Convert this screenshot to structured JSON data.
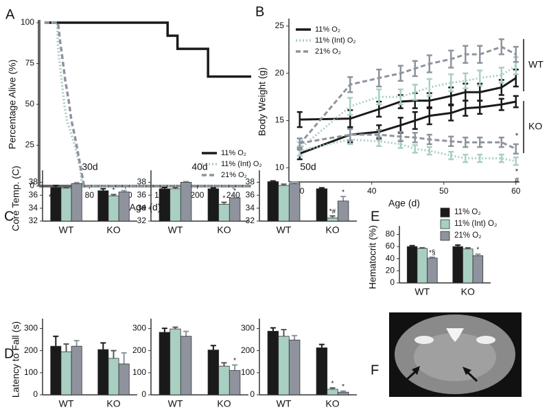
{
  "panel_labels": [
    "A",
    "B",
    "C",
    "D",
    "E",
    "F"
  ],
  "chart_data": [
    {
      "type": "line",
      "ylabel": "Percentage Alive (%)",
      "xlabel": "Age (d)",
      "xlim": [
        24,
        260
      ],
      "ylim": [
        0,
        100
      ],
      "xticks": [
        40,
        80,
        120,
        160,
        200,
        240
      ],
      "yticks": [
        0,
        25,
        50,
        75,
        100
      ],
      "legend": "lower right",
      "series": [
        {
          "name": "11% O₂",
          "color": "#1a1a1a",
          "dash": "solid",
          "x": [
            30,
            167,
            167,
            178,
            178,
            212,
            212,
            260
          ],
          "values": [
            100,
            100,
            92,
            92,
            84,
            84,
            67,
            67
          ]
        },
        {
          "name": "11% (Int) O₂",
          "color": "#a9cfc3",
          "dash": "dotted",
          "x": [
            30,
            44,
            45,
            48,
            50,
            52,
            55,
            58,
            62,
            65,
            70,
            72,
            260
          ],
          "values": [
            100,
            100,
            85,
            70,
            60,
            50,
            40,
            35,
            28,
            22,
            10,
            0,
            0
          ]
        },
        {
          "name": "21% O₂",
          "color": "#8e939e",
          "dash": "dashed",
          "x": [
            30,
            45,
            47,
            50,
            53,
            57,
            60,
            64,
            68,
            72,
            74,
            260
          ],
          "values": [
            100,
            100,
            90,
            78,
            65,
            52,
            40,
            30,
            18,
            6,
            0,
            0
          ]
        }
      ]
    },
    {
      "type": "errorline",
      "ylabel": "Body Weight (g)",
      "xlabel": "Age (d)",
      "xlim": [
        28.5,
        60.5
      ],
      "ylim": [
        8.5,
        25.5
      ],
      "xticks": [
        30,
        40,
        50,
        60
      ],
      "yticks": [
        10,
        15,
        20,
        25
      ],
      "legend": "upper left",
      "x": [
        30,
        37,
        41,
        44,
        46,
        48,
        51,
        53,
        55,
        58,
        60
      ],
      "groups": [
        "WT",
        "KO"
      ],
      "annotations": [
        "*",
        "*",
        "#"
      ],
      "series": [
        {
          "name": "11% O₂",
          "color": "#1a1a1a",
          "dash": "solid",
          "wt": {
            "values": [
              15.1,
              15.2,
              16.2,
              17,
              17.1,
              17.1,
              17.6,
              18,
              18,
              18.5,
              19.5
            ],
            "errors": [
              0.8,
              0.9,
              0.8,
              0.7,
              0.8,
              0.8,
              0.9,
              0.9,
              0.9,
              0.8,
              0.9
            ]
          },
          "ko": {
            "values": [
              11.5,
              13.5,
              13.8,
              14.5,
              15,
              15.5,
              15.8,
              16.3,
              16.4,
              16.7,
              17
            ],
            "errors": [
              0.6,
              0.8,
              0.7,
              0.8,
              0.9,
              0.9,
              0.8,
              0.8,
              0.7,
              0.6,
              0.6
            ]
          }
        },
        {
          "name": "11% (Int) O₂",
          "color": "#a9cfc3",
          "dash": "dotted",
          "wt": {
            "values": [
              12,
              16.5,
              17.5,
              17.5,
              18,
              18.5,
              19,
              19.2,
              19.5,
              19.8,
              20.8
            ],
            "errors": [
              0.7,
              0.9,
              0.8,
              0.8,
              0.8,
              0.9,
              0.9,
              0.8,
              0.8,
              0.8,
              0.9
            ]
          },
          "ko": {
            "values": [
              11.8,
              13,
              12.8,
              12.5,
              12,
              11.8,
              11.3,
              11,
              11,
              11,
              10.7
            ],
            "errors": [
              0.5,
              0.5,
              0.5,
              0.4,
              0.4,
              0.4,
              0.4,
              0.4,
              0.4,
              0.4,
              0.4
            ]
          }
        },
        {
          "name": "21% O₂",
          "color": "#8e939e",
          "dash": "dashed",
          "wt": {
            "values": [
              12.5,
              18.8,
              19.5,
              20,
              20.5,
              21,
              21.5,
              22,
              22,
              22.8,
              22
            ],
            "errors": [
              0.6,
              0.8,
              0.9,
              0.8,
              0.8,
              0.9,
              0.9,
              0.9,
              0.9,
              0.8,
              0.8
            ]
          },
          "ko": {
            "values": [
              12.6,
              13.5,
              13.5,
              13.3,
              13.2,
              13,
              12.8,
              12.7,
              12.7,
              12.7,
              12
            ],
            "errors": [
              0.5,
              0.6,
              0.5,
              0.5,
              0.5,
              0.5,
              0.5,
              0.5,
              0.5,
              0.5,
              0.5
            ]
          }
        }
      ]
    },
    {
      "type": "bar",
      "title": "30d",
      "ylabel": "Core Temp. (C)",
      "categories": [
        "WT",
        "KO"
      ],
      "ylim": [
        32,
        39
      ],
      "yticks": [
        32,
        34,
        36,
        38
      ],
      "series": [
        {
          "color": "#1a1a1a",
          "values": [
            37.2,
            36.7
          ],
          "errors": [
            0.3,
            0.3
          ]
        },
        {
          "color": "#a9cfc3",
          "values": [
            37.1,
            35.9
          ],
          "errors": [
            0.1,
            0.2
          ]
        },
        {
          "color": "#8e939e",
          "values": [
            37.8,
            36.5
          ],
          "errors": [
            0.15,
            0.2
          ]
        }
      ],
      "annotations": [
        {
          "text": "*",
          "series": 1,
          "index": 1
        }
      ]
    },
    {
      "type": "bar",
      "title": "40d",
      "categories": [
        "WT",
        "KO"
      ],
      "ylim": [
        32,
        39
      ],
      "yticks": [
        32,
        34,
        36,
        38
      ],
      "series": [
        {
          "color": "#1a1a1a",
          "values": [
            37.0,
            37.0
          ],
          "errors": [
            0.2,
            0.15
          ]
        },
        {
          "color": "#a9cfc3",
          "values": [
            37.0,
            34.6
          ],
          "errors": [
            0.2,
            0.3
          ]
        },
        {
          "color": "#8e939e",
          "values": [
            38.0,
            35.6
          ],
          "errors": [
            0.1,
            0.4
          ]
        }
      ],
      "annotations": [
        {
          "text": "*",
          "series": 1,
          "index": 1
        },
        {
          "text": "*",
          "series": 2,
          "index": 1
        }
      ]
    },
    {
      "type": "bar",
      "title": "50d",
      "categories": [
        "WT",
        "KO"
      ],
      "ylim": [
        32,
        39
      ],
      "yticks": [
        32,
        34,
        36,
        38
      ],
      "series": [
        {
          "color": "#1a1a1a",
          "values": [
            38.1,
            37.0
          ],
          "errors": [
            0.1,
            0.15
          ]
        },
        {
          "color": "#a9cfc3",
          "values": [
            37.5,
            32.5
          ],
          "errors": [
            0.2,
            0.3
          ]
        },
        {
          "color": "#8e939e",
          "values": [
            37.8,
            35.1
          ],
          "errors": [
            0.2,
            0.7
          ]
        }
      ],
      "annotations": [
        {
          "text": "*#",
          "series": 1,
          "index": 1
        },
        {
          "text": "*",
          "series": 2,
          "index": 1
        }
      ]
    },
    {
      "type": "bar",
      "ylabel": "Latency to Fall (s)",
      "categories": [
        "WT",
        "KO"
      ],
      "ylim": [
        0,
        320
      ],
      "yticks": [
        0,
        100,
        200,
        300
      ],
      "series": [
        {
          "color": "#1a1a1a",
          "values": [
            220,
            205
          ],
          "errors": [
            45,
            30
          ]
        },
        {
          "color": "#a9cfc3",
          "values": [
            195,
            165
          ],
          "errors": [
            35,
            35
          ]
        },
        {
          "color": "#8e939e",
          "values": [
            220,
            140
          ],
          "errors": [
            25,
            50
          ]
        }
      ],
      "annotations": []
    },
    {
      "type": "bar",
      "categories": [
        "WT",
        "KO"
      ],
      "ylim": [
        0,
        320
      ],
      "yticks": [
        0,
        100,
        200,
        300
      ],
      "series": [
        {
          "color": "#1a1a1a",
          "values": [
            283,
            203
          ],
          "errors": [
            18,
            20
          ]
        },
        {
          "color": "#a9cfc3",
          "values": [
            298,
            130
          ],
          "errors": [
            8,
            15
          ]
        },
        {
          "color": "#8e939e",
          "values": [
            265,
            110
          ],
          "errors": [
            22,
            25
          ]
        }
      ],
      "annotations": [
        {
          "text": "*",
          "series": 2,
          "index": 1
        }
      ]
    },
    {
      "type": "bar",
      "categories": [
        "WT",
        "KO"
      ],
      "ylim": [
        0,
        320
      ],
      "yticks": [
        0,
        100,
        200,
        300
      ],
      "series": [
        {
          "color": "#1a1a1a",
          "values": [
            288,
            213
          ],
          "errors": [
            15,
            15
          ]
        },
        {
          "color": "#a9cfc3",
          "values": [
            265,
            25
          ],
          "errors": [
            30,
            6
          ]
        },
        {
          "color": "#8e939e",
          "values": [
            248,
            12
          ],
          "errors": [
            20,
            5
          ]
        }
      ],
      "annotations": [
        {
          "text": "*",
          "series": 1,
          "index": 1
        },
        {
          "text": "*",
          "series": 2,
          "index": 1
        }
      ]
    },
    {
      "type": "bar",
      "ylabel": "Hematocrit (%)",
      "categories": [
        "WT",
        "KO"
      ],
      "ylim": [
        0,
        85
      ],
      "yticks": [
        0,
        20,
        40,
        60,
        80
      ],
      "legend": "upper right",
      "series": [
        {
          "name": "11% O₂",
          "color": "#1a1a1a",
          "values": [
            60,
            60
          ],
          "errors": [
            1.5,
            2.5
          ]
        },
        {
          "name": "11% (Int) O₂",
          "color": "#a9cfc3",
          "values": [
            57,
            56
          ],
          "errors": [
            1,
            2
          ]
        },
        {
          "name": "21% O₂",
          "color": "#8e939e",
          "values": [
            41,
            45
          ],
          "errors": [
            1.5,
            2.5
          ]
        }
      ],
      "annotations": [
        {
          "text": "*§",
          "series": 2,
          "index": 0
        },
        {
          "text": "*",
          "series": 2,
          "index": 1
        }
      ]
    }
  ]
}
